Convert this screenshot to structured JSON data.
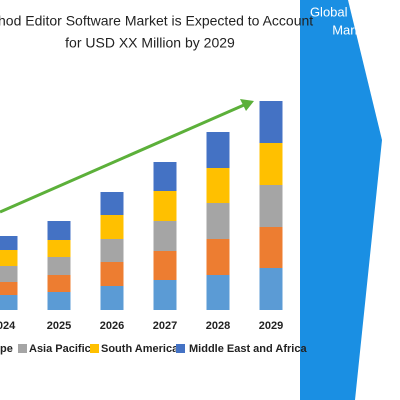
{
  "chart_data": {
    "type": "stacked_bar",
    "title_lines": [
      "hod Editor Software Market is Expected to Account",
      "for USD XX Million by 2029"
    ],
    "categories": [
      "024",
      "2025",
      "2026",
      "2027",
      "2028",
      "2029"
    ],
    "series": [
      {
        "name": null,
        "color": "#5b9bd5",
        "values": [
          15,
          18,
          24,
          30,
          35,
          42
        ]
      },
      {
        "name": "pe",
        "color": "#ed7d31",
        "values": [
          13,
          17,
          24,
          29,
          36,
          41
        ]
      },
      {
        "name": "Asia Pacific",
        "color": "#a5a5a5",
        "values": [
          16,
          18,
          23,
          30,
          36,
          42
        ]
      },
      {
        "name": "South America",
        "color": "#ffc000",
        "values": [
          16,
          17,
          24,
          30,
          35,
          42
        ]
      },
      {
        "name": "Middle East and Africa",
        "color": "#4472c4",
        "values": [
          14,
          19,
          23,
          29,
          36,
          42
        ]
      }
    ]
  },
  "side_panel": {
    "lines": [
      "Global Input",
      "Market, B"
    ]
  }
}
